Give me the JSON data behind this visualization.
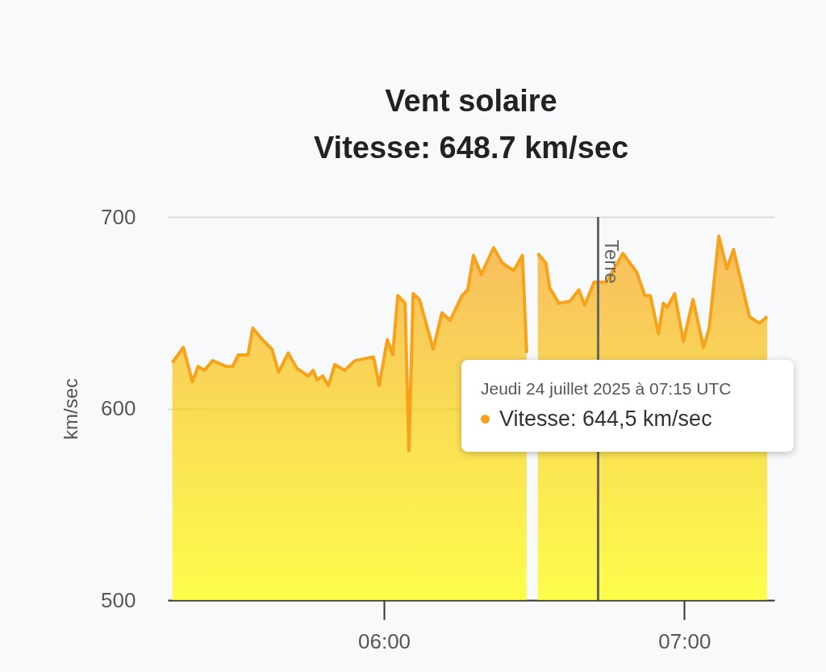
{
  "chart_data": {
    "type": "area",
    "title": "Vent solaire",
    "subtitle": "Vitesse: 648.7 km/sec",
    "ylabel": "km/sec",
    "x": [
      5.295,
      5.332,
      5.362,
      5.381,
      5.402,
      5.429,
      5.475,
      5.496,
      5.515,
      5.547,
      5.563,
      5.595,
      5.627,
      5.649,
      5.681,
      5.71,
      5.748,
      5.764,
      5.777,
      5.796,
      5.815,
      5.836,
      5.869,
      5.903,
      5.965,
      5.984,
      6.011,
      6.029,
      6.046,
      6.07,
      6.083,
      6.097,
      6.118,
      6.164,
      6.193,
      6.22,
      6.26,
      6.279,
      6.298,
      6.324,
      6.365,
      6.394,
      6.432,
      6.461,
      6.475,
      6.493,
      6.512,
      6.539,
      6.552,
      6.582,
      6.619,
      6.649,
      6.668,
      6.7,
      6.74,
      6.796,
      6.842,
      6.869,
      6.887,
      6.914,
      6.93,
      6.944,
      6.968,
      6.997,
      7.029,
      7.064,
      7.083,
      7.115,
      7.142,
      7.164,
      7.217,
      7.25,
      7.276
    ],
    "series": [
      {
        "color": "#f7a21b",
        "values": [
          624,
          632,
          614,
          622,
          620,
          625,
          622,
          622,
          628,
          628,
          642,
          636,
          631,
          619,
          629,
          621,
          617,
          620,
          615,
          617,
          612,
          623,
          620,
          625,
          627,
          612,
          636,
          628,
          659,
          655,
          578,
          660,
          657,
          631,
          650,
          646,
          659,
          662,
          680,
          670,
          684,
          676,
          672,
          680,
          629,
          null,
          681,
          676,
          663,
          655,
          656,
          662,
          654,
          666,
          666,
          681,
          671,
          659,
          659,
          639,
          655,
          653,
          660,
          635,
          657,
          632,
          642,
          690,
          673,
          683,
          648,
          644.5,
          648
        ]
      }
    ],
    "xlim": [
      5.28,
      7.3
    ],
    "xticks": [
      {
        "value": 6,
        "label": "06:00"
      },
      {
        "value": 7,
        "label": "07:00"
      }
    ],
    "ylim": [
      500,
      700
    ],
    "yticks": [
      500,
      600,
      700
    ],
    "grid": "y",
    "ref_lines": [
      {
        "axis": "x",
        "value": 6.713,
        "label": "Terre",
        "color": "#666666"
      }
    ],
    "annotations": [
      "Jeudi 24 juillet 2025 à 07:15 UTC",
      "Vitesse: 644,5 km/sec"
    ]
  }
}
